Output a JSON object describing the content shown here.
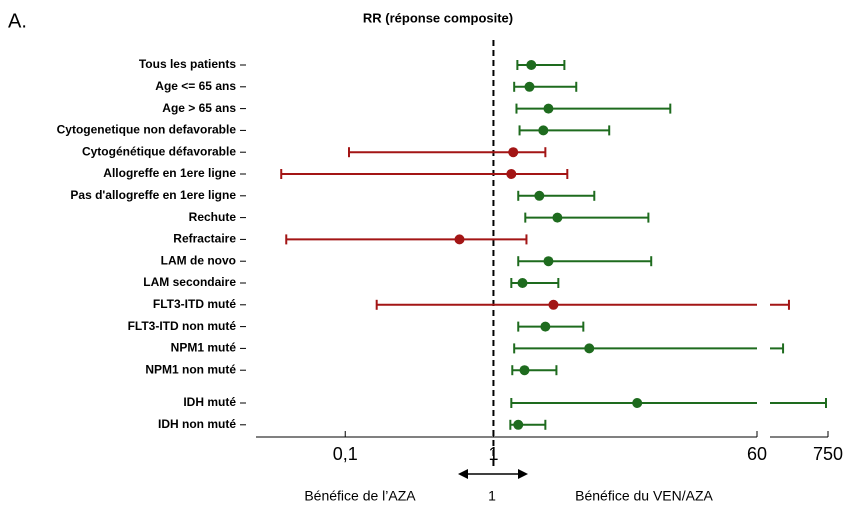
{
  "chart_data": {
    "type": "forest",
    "panel_label": "A.",
    "title": "RR (réponse composite)",
    "categories": [
      "Tous les patients",
      "Age <= 65 ans",
      "Age > 65 ans",
      "Cytogenetique non defavorable",
      "Cytogénétique défavorable",
      "Allogreffe en 1ere ligne",
      "Pas d'allogreffe en 1ere ligne",
      "Rechute",
      "Refractaire",
      "LAM de novo",
      "LAM secondaire",
      "FLT3-ITD muté",
      "FLT3-ITD non muté",
      "NPM1 muté",
      "NPM1 non muté",
      "IDH muté",
      "IDH non muté"
    ],
    "estimates": [
      1.8,
      1.75,
      2.35,
      2.17,
      1.36,
      1.32,
      2.04,
      2.7,
      0.59,
      2.35,
      1.57,
      2.54,
      2.24,
      4.43,
      1.62,
      9.33,
      1.47
    ],
    "lower": [
      1.45,
      1.38,
      1.43,
      1.5,
      0.106,
      0.037,
      1.47,
      1.64,
      0.04,
      1.47,
      1.32,
      0.163,
      1.47,
      1.38,
      1.34,
      1.32,
      1.3
    ],
    "upper": [
      3.01,
      3.62,
      15.6,
      6.04,
      2.24,
      3.15,
      4.79,
      11.1,
      1.67,
      11.6,
      2.74,
      137,
      4.04,
      106,
      2.66,
      687,
      2.24
    ],
    "colors": [
      "#1e6b1e",
      "#1e6b1e",
      "#1e6b1e",
      "#1e6b1e",
      "#a31515",
      "#a31515",
      "#1e6b1e",
      "#1e6b1e",
      "#a31515",
      "#1e6b1e",
      "#1e6b1e",
      "#a31515",
      "#1e6b1e",
      "#1e6b1e",
      "#1e6b1e",
      "#1e6b1e",
      "#1e6b1e"
    ],
    "xscale": "log",
    "xlim": [
      0.025,
      60
    ],
    "x2lim": [
      60,
      750
    ],
    "xticks": [
      {
        "value": 0.1,
        "label": "0,1"
      },
      1,
      60
    ],
    "x2ticks": [
      750
    ],
    "refline": 1,
    "annotations": [
      "Bénéfice de l’AZA",
      "1",
      "Bénéfice du VEN/AZA"
    ]
  }
}
